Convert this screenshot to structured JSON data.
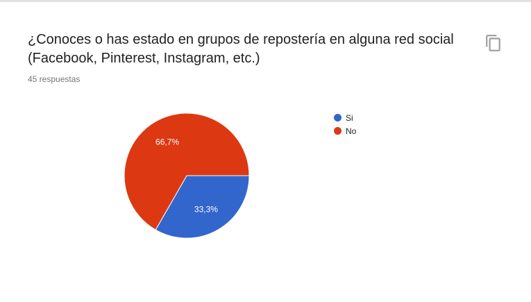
{
  "card": {
    "title": "¿Conoces o has estado en grupos de repostería en alguna red social (Facebook, Pinterest, Instagram, etc.)",
    "subtitle": "45 respuestas",
    "copy_icon": "copy-icon"
  },
  "chart_data": {
    "type": "pie",
    "categories": [
      "Si",
      "No"
    ],
    "values": [
      33.3,
      66.7
    ],
    "labels": [
      "33,3%",
      "66,7%"
    ],
    "colors": [
      "#3366cc",
      "#dc3912"
    ],
    "legend_position": "right"
  }
}
